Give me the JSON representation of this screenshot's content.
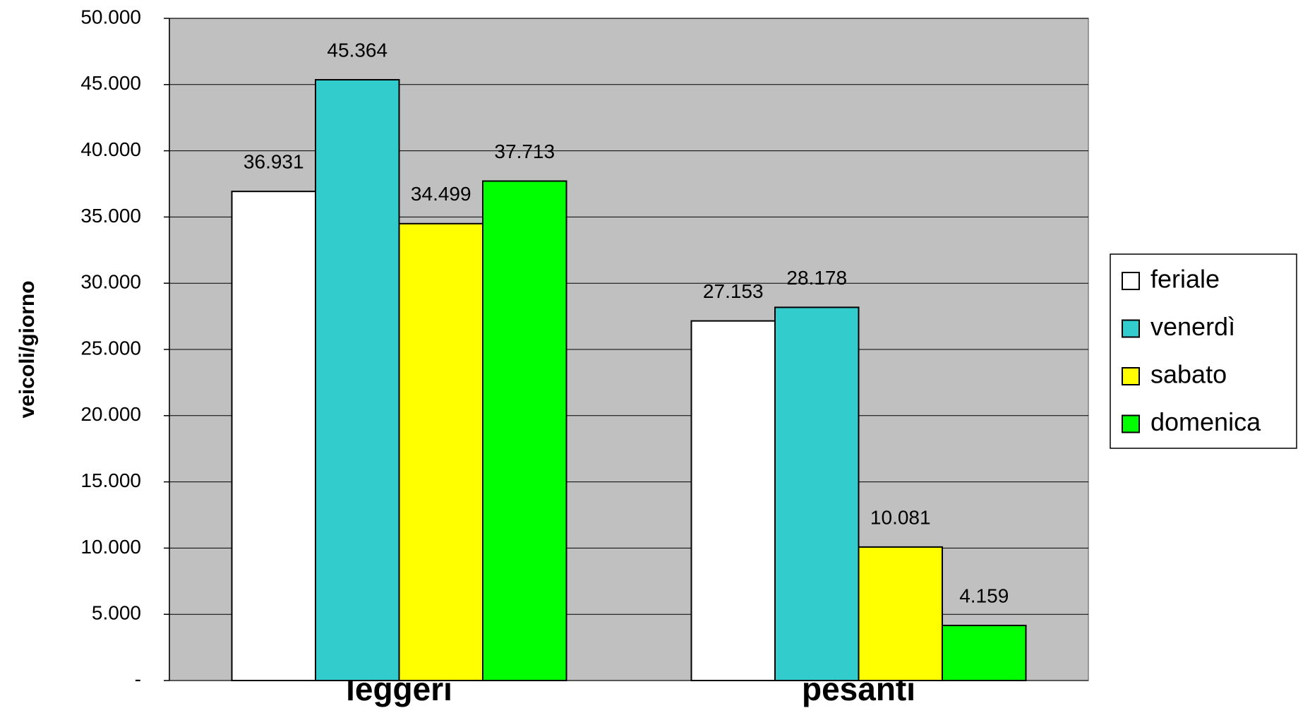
{
  "chart_data": {
    "type": "bar",
    "y_label": "veicoli/giorno",
    "categories": [
      "leggeri",
      "pesanti"
    ],
    "series": [
      {
        "name": "feriale",
        "color": "#ffffff",
        "values": [
          36931,
          27153
        ],
        "value_labels": [
          "36.931",
          "27.153"
        ]
      },
      {
        "name": "venerdì",
        "color": "#33cccc",
        "values": [
          45364,
          28178
        ],
        "value_labels": [
          "45.364",
          "28.178"
        ]
      },
      {
        "name": "sabato",
        "color": "#ffff00",
        "values": [
          34499,
          10081
        ],
        "value_labels": [
          "34.499",
          "10.081"
        ]
      },
      {
        "name": "domenica",
        "color": "#00ff00",
        "values": [
          37713,
          4159
        ],
        "value_labels": [
          "37.713",
          "4.159"
        ]
      }
    ],
    "ylim": [
      0,
      50000
    ],
    "yticks": [
      {
        "value": 0,
        "label": "-"
      },
      {
        "value": 5000,
        "label": "5.000"
      },
      {
        "value": 10000,
        "label": "10.000"
      },
      {
        "value": 15000,
        "label": "15.000"
      },
      {
        "value": 20000,
        "label": "20.000"
      },
      {
        "value": 25000,
        "label": "25.000"
      },
      {
        "value": 30000,
        "label": "30.000"
      },
      {
        "value": 35000,
        "label": "35.000"
      },
      {
        "value": 40000,
        "label": "40.000"
      },
      {
        "value": 45000,
        "label": "45.000"
      },
      {
        "value": 50000,
        "label": "50.000"
      }
    ],
    "grid": true,
    "plot_background": "#c0c0c0",
    "legend": "right"
  }
}
